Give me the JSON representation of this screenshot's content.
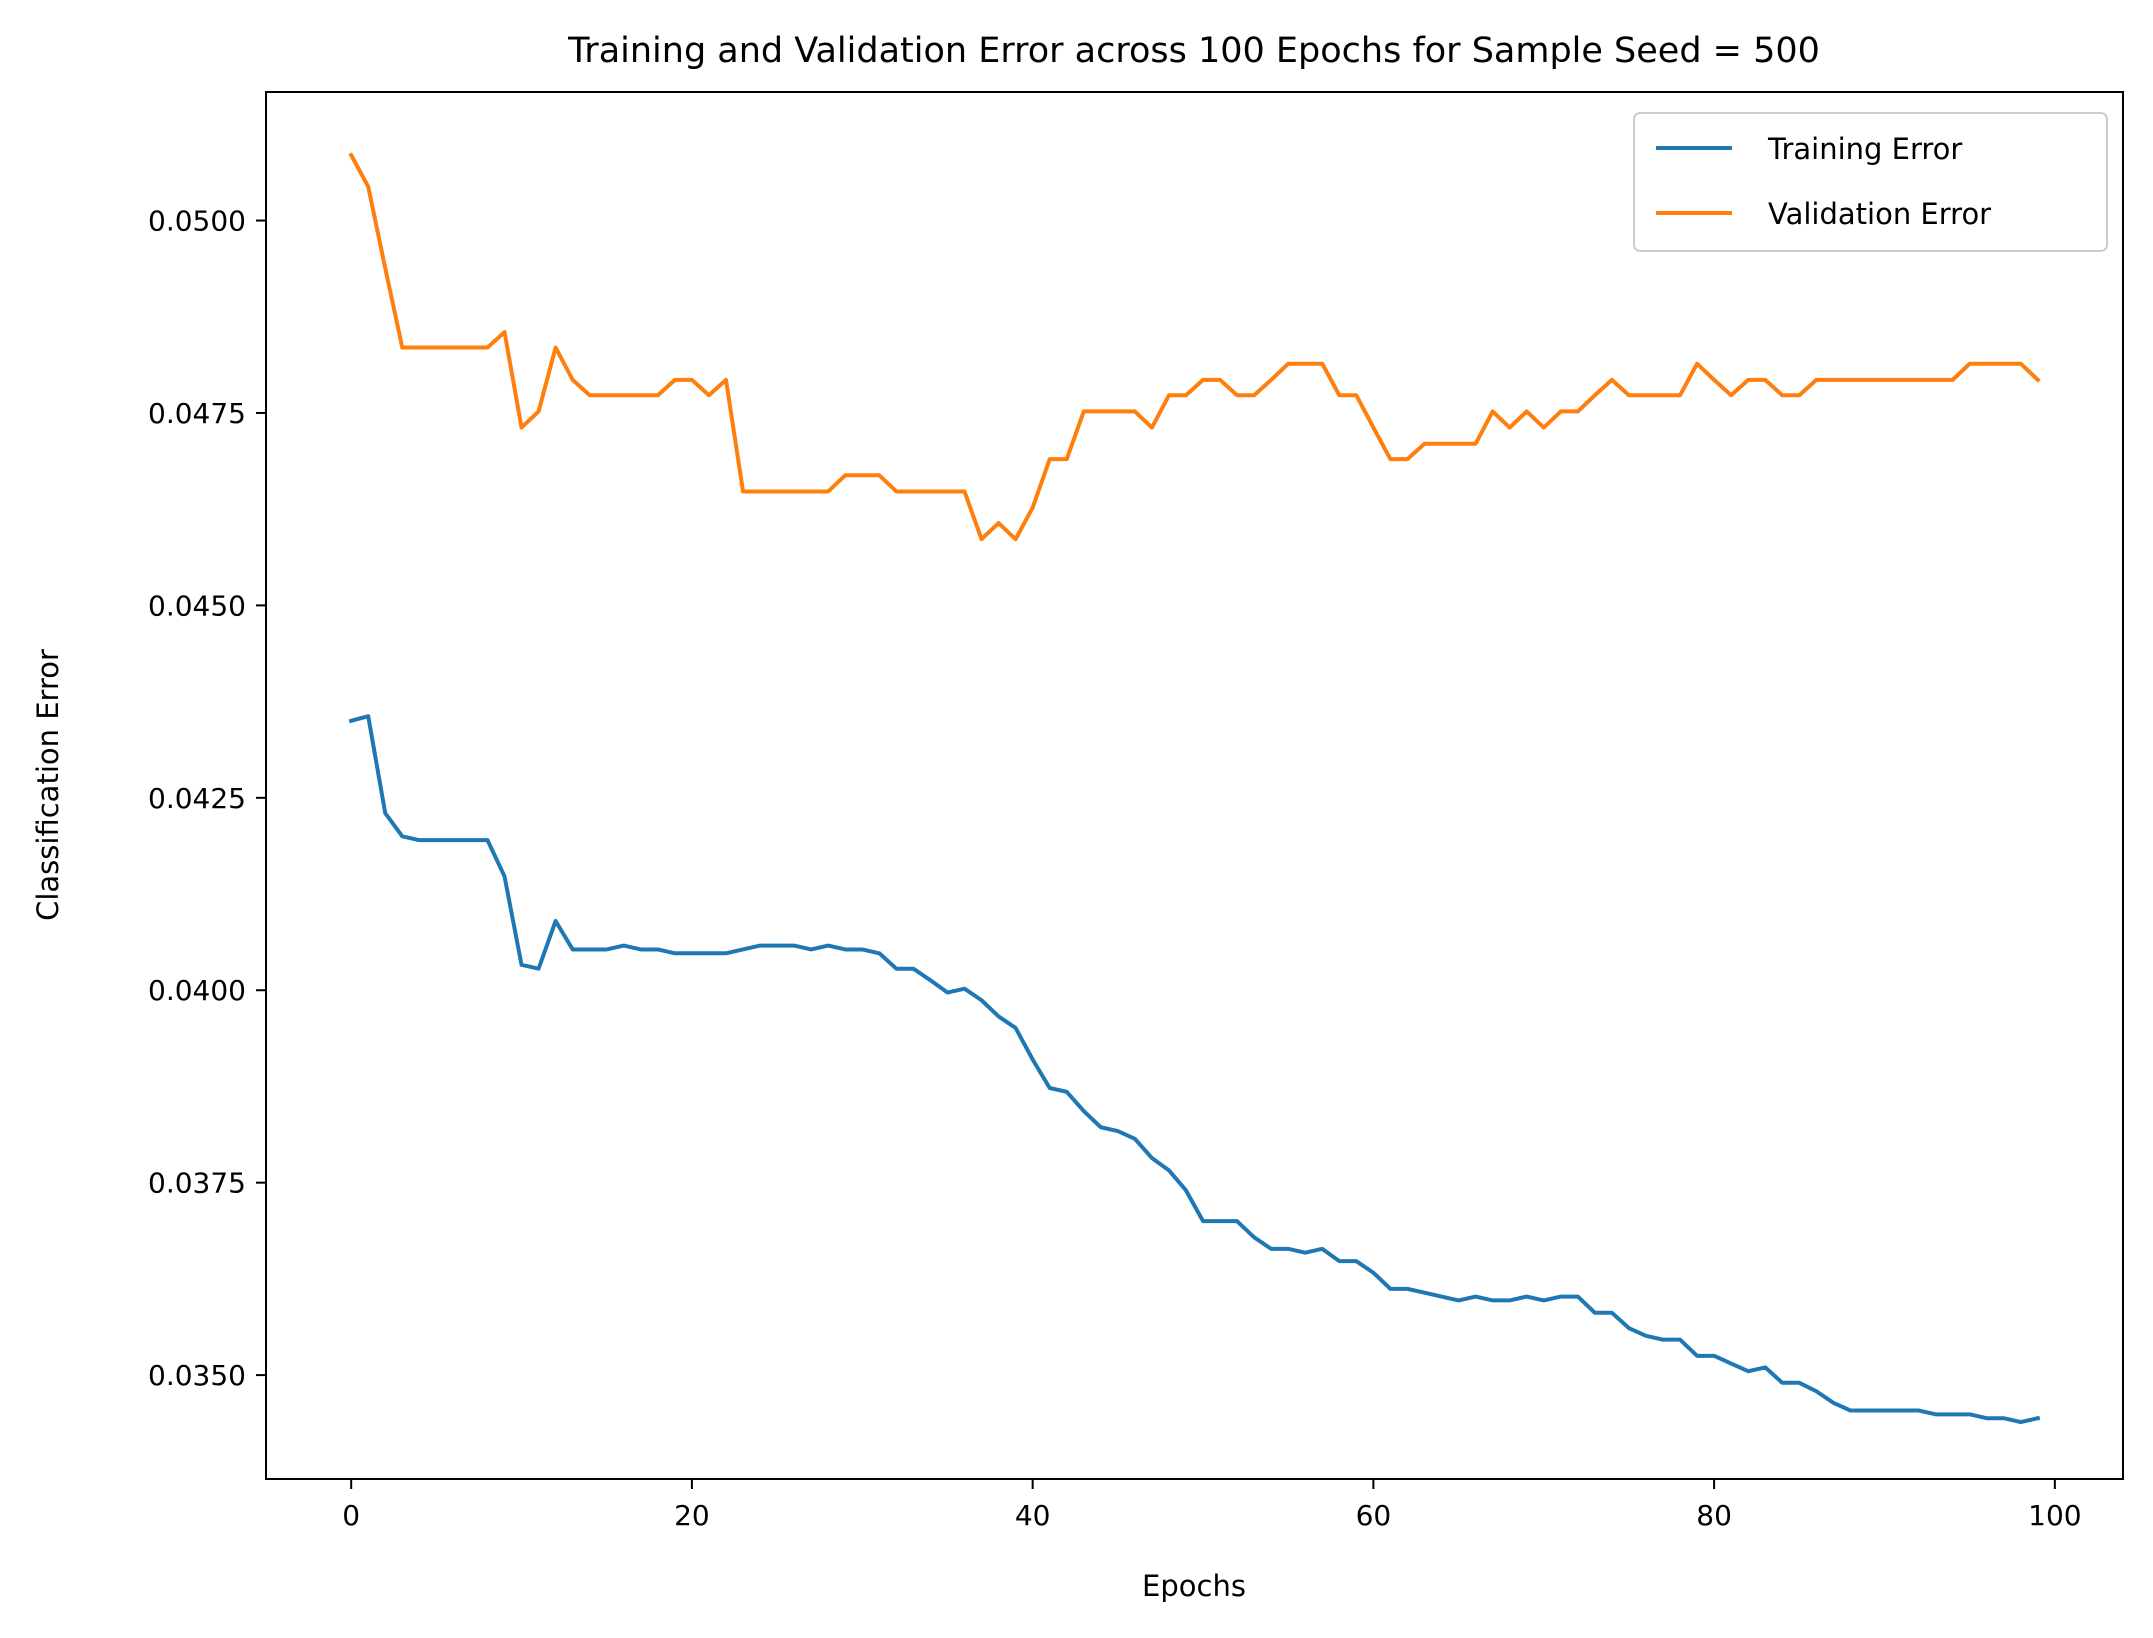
{
  "chart_data": {
    "type": "line",
    "title": "Training and Validation Error across 100 Epochs for Sample Seed = 500",
    "xlabel": "Epochs",
    "ylabel": "Classification Error",
    "xlim": [
      -5,
      104
    ],
    "ylim": [
      0.03365,
      0.05167
    ],
    "xticks": [
      0,
      20,
      40,
      60,
      80,
      100
    ],
    "yticks": [
      0.035,
      0.0375,
      0.04,
      0.0425,
      0.045,
      0.0475,
      0.05
    ],
    "ytick_labels": [
      "0.0350",
      "0.0375",
      "0.0400",
      "0.0425",
      "0.0450",
      "0.0475",
      "0.0500"
    ],
    "xtick_labels": [
      "0",
      "20",
      "40",
      "60",
      "80",
      "100"
    ],
    "grid": false,
    "legend_position": "top-right",
    "series": [
      {
        "name": "Training Error",
        "color": "#1f77b4",
        "values": [
          0.0435,
          0.04356,
          0.0423,
          0.042,
          0.04195,
          0.04195,
          0.04195,
          0.04195,
          0.04195,
          0.04148,
          0.04033,
          0.04028,
          0.0409,
          0.04053,
          0.04053,
          0.04053,
          0.04058,
          0.04053,
          0.04053,
          0.04048,
          0.04048,
          0.04048,
          0.04048,
          0.04053,
          0.04058,
          0.04058,
          0.04058,
          0.04053,
          0.04058,
          0.04053,
          0.04053,
          0.04048,
          0.04028,
          0.04028,
          0.04013,
          0.03997,
          0.04002,
          0.03987,
          0.03966,
          0.03951,
          0.0391,
          0.03873,
          0.03868,
          0.03843,
          0.03822,
          0.03817,
          0.03807,
          0.03782,
          0.03766,
          0.0374,
          0.037,
          0.037,
          0.037,
          0.03679,
          0.03664,
          0.03664,
          0.03659,
          0.03664,
          0.03648,
          0.03648,
          0.03633,
          0.03612,
          0.03612,
          0.03607,
          0.03602,
          0.03597,
          0.03602,
          0.03597,
          0.03597,
          0.03602,
          0.03597,
          0.03602,
          0.03602,
          0.03581,
          0.03581,
          0.03561,
          0.03551,
          0.03546,
          0.03546,
          0.03525,
          0.03525,
          0.03515,
          0.03505,
          0.0351,
          0.0349,
          0.0349,
          0.03479,
          0.03464,
          0.03454,
          0.03454,
          0.03454,
          0.03454,
          0.03454,
          0.03449,
          0.03449,
          0.03449,
          0.03444,
          0.03444,
          0.03439,
          0.03444
        ]
      },
      {
        "name": "Validation Error",
        "color": "#ff7f0e",
        "values": [
          0.05085,
          0.05044,
          0.04938,
          0.04835,
          0.04835,
          0.04835,
          0.04835,
          0.04835,
          0.04835,
          0.04855,
          0.04731,
          0.04752,
          0.04835,
          0.04793,
          0.04773,
          0.04773,
          0.04773,
          0.04773,
          0.04773,
          0.04793,
          0.04793,
          0.04773,
          0.04793,
          0.04648,
          0.04648,
          0.04648,
          0.04648,
          0.04648,
          0.04648,
          0.04669,
          0.04669,
          0.04669,
          0.04648,
          0.04648,
          0.04648,
          0.04648,
          0.04648,
          0.04586,
          0.04607,
          0.04586,
          0.04627,
          0.0469,
          0.0469,
          0.04752,
          0.04752,
          0.04752,
          0.04752,
          0.04731,
          0.04773,
          0.04773,
          0.04793,
          0.04793,
          0.04773,
          0.04773,
          0.04793,
          0.04814,
          0.04814,
          0.04814,
          0.04773,
          0.04773,
          0.04731,
          0.0469,
          0.0469,
          0.0471,
          0.0471,
          0.0471,
          0.0471,
          0.04752,
          0.04731,
          0.04752,
          0.04731,
          0.04752,
          0.04752,
          0.04773,
          0.04793,
          0.04773,
          0.04773,
          0.04773,
          0.04773,
          0.04814,
          0.04793,
          0.04773,
          0.04793,
          0.04793,
          0.04773,
          0.04773,
          0.04793,
          0.04793,
          0.04793,
          0.04793,
          0.04793,
          0.04793,
          0.04793,
          0.04793,
          0.04793,
          0.04814,
          0.04814,
          0.04814,
          0.04814,
          0.04793
        ]
      }
    ]
  }
}
